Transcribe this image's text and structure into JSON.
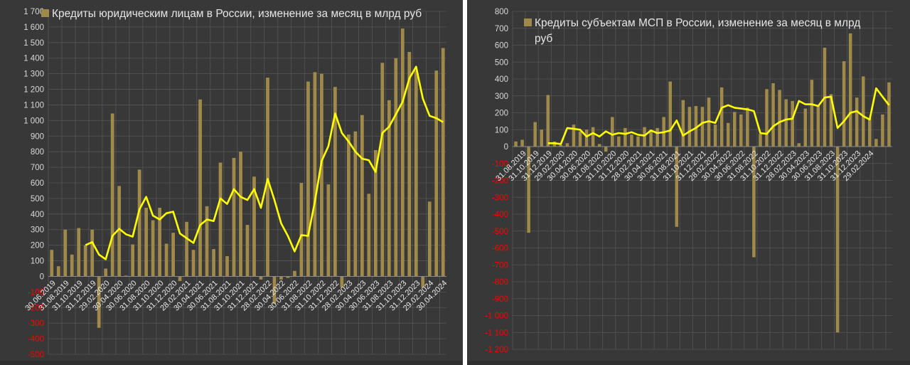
{
  "colors": {
    "background": "#383838",
    "bar": "#a08a4a",
    "line": "#ffff00",
    "grid": "#555555",
    "tick_positive": "#d8d8d8",
    "tick_negative": "#ff0000"
  },
  "chart_data": [
    {
      "type": "bar",
      "title": "Кредиты юридическим лицам в России, изменение за месяц в млрд руб",
      "legend_position": "top-left",
      "y_ticks": [
        "1 700",
        "1 600",
        "1 500",
        "1 400",
        "1 300",
        "1 200",
        "1 100",
        "1 000",
        "900",
        "800",
        "700",
        "600",
        "500",
        "400",
        "300",
        "200",
        "100",
        "0",
        "-100",
        "-200",
        "-300",
        "-400",
        "-500"
      ],
      "ylim": [
        -500,
        1700
      ],
      "x_labels": [
        "30.06.2019",
        "31.08.2019",
        "31.10.2019",
        "31.12.2019",
        "29.02.2020",
        "30.04.2020",
        "30.06.2020",
        "31.08.2020",
        "31.10.2020",
        "31.12.2020",
        "28.02.2021",
        "30.04.2021",
        "30.06.2021",
        "31.08.2021",
        "31.10.2021",
        "31.12.2021",
        "28.02.2022",
        "30.04.2022",
        "30.06.2022",
        "31.08.2022",
        "31.10.2022",
        "31.12.2022",
        "28.02.2023",
        "30.04.2023",
        "30.06.2023",
        "31.08.2023",
        "31.10.2023",
        "31.12.2023",
        "29.02.2024",
        "30.04.2024"
      ],
      "series": [
        {
          "type": "bar",
          "name": "Кредиты юридическим лицам в России, изменение за месяц в млрд руб",
          "values": [
            170,
            65,
            300,
            140,
            310,
            200,
            300,
            -330,
            50,
            1045,
            580,
            5,
            205,
            685,
            440,
            360,
            440,
            210,
            280,
            -30,
            350,
            170,
            1135,
            450,
            175,
            730,
            130,
            760,
            800,
            330,
            640,
            -20,
            1275,
            -175,
            -20,
            -10,
            35,
            600,
            1250,
            1310,
            1300,
            590,
            1215,
            -70,
            910,
            930,
            1035,
            530,
            810,
            1370,
            1130,
            1400,
            1590,
            1440,
            1320,
            -70,
            480,
            1320,
            1465
          ]
        },
        {
          "type": "line",
          "values": [
            null,
            null,
            null,
            null,
            null,
            200,
            220,
            140,
            110,
            260,
            305,
            270,
            255,
            430,
            510,
            390,
            365,
            405,
            415,
            275,
            245,
            215,
            330,
            365,
            355,
            500,
            465,
            560,
            510,
            490,
            560,
            440,
            625,
            490,
            340,
            260,
            160,
            265,
            260,
            480,
            740,
            835,
            1045,
            920,
            865,
            800,
            755,
            745,
            670,
            920,
            960,
            1040,
            1120,
            1270,
            1345,
            1140,
            1030,
            1015,
            990
          ]
        }
      ]
    },
    {
      "type": "bar",
      "title": "Кредиты субъектам МСП  в России, изменение за месяц в млрд руб",
      "legend_position": "top-left",
      "y_ticks": [
        "800",
        "700",
        "600",
        "500",
        "400",
        "300",
        "200",
        "100",
        "0",
        "-100",
        "-200",
        "-300",
        "-400",
        "-500",
        "-600",
        "-700",
        "-800",
        "-900",
        "-1 000",
        "-1 100",
        "-1 200"
      ],
      "ylim": [
        -1200,
        800
      ],
      "x_labels": [
        "31.08.2019",
        "31.10.2019",
        "31.12.2019",
        "29.02.2020",
        "30.04.2020",
        "30.06.2020",
        "31.08.2020",
        "31.10.2020",
        "31.12.2020",
        "28.02.2021",
        "30.04.2021",
        "30.06.2021",
        "31.08.2021",
        "31.10.2021",
        "31.12.2021",
        "28.02.2022",
        "30.04.2022",
        "30.06.2022",
        "31.08.2022",
        "31.10.2022",
        "31.12.2022",
        "28.02.2023",
        "30.04.2023",
        "30.06.2023",
        "31.08.2023",
        "31.10.2023",
        "31.12.2023",
        "29.02.2024"
      ],
      "series": [
        {
          "type": "bar",
          "name": "Кредиты субъектам МСП  в России, изменение за месяц в млрд руб",
          "values": [
            30,
            40,
            -510,
            145,
            100,
            305,
            30,
            10,
            20,
            130,
            90,
            100,
            115,
            15,
            -30,
            175,
            60,
            110,
            70,
            60,
            115,
            100,
            110,
            175,
            385,
            -475,
            275,
            235,
            240,
            235,
            290,
            130,
            350,
            140,
            205,
            190,
            230,
            -655,
            75,
            340,
            375,
            335,
            280,
            270,
            20,
            225,
            395,
            240,
            585,
            310,
            -1100,
            505,
            670,
            290,
            415,
            170,
            45,
            190,
            380
          ]
        },
        {
          "type": "line",
          "values": [
            null,
            null,
            null,
            null,
            null,
            20,
            20,
            15,
            110,
            105,
            100,
            60,
            80,
            60,
            90,
            70,
            80,
            75,
            85,
            70,
            65,
            95,
            80,
            85,
            95,
            155,
            65,
            90,
            110,
            140,
            150,
            140,
            230,
            245,
            230,
            225,
            220,
            210,
            80,
            75,
            120,
            145,
            160,
            165,
            270,
            250,
            250,
            240,
            290,
            295,
            110,
            150,
            200,
            210,
            180,
            160,
            345,
            295,
            245
          ]
        }
      ]
    }
  ]
}
